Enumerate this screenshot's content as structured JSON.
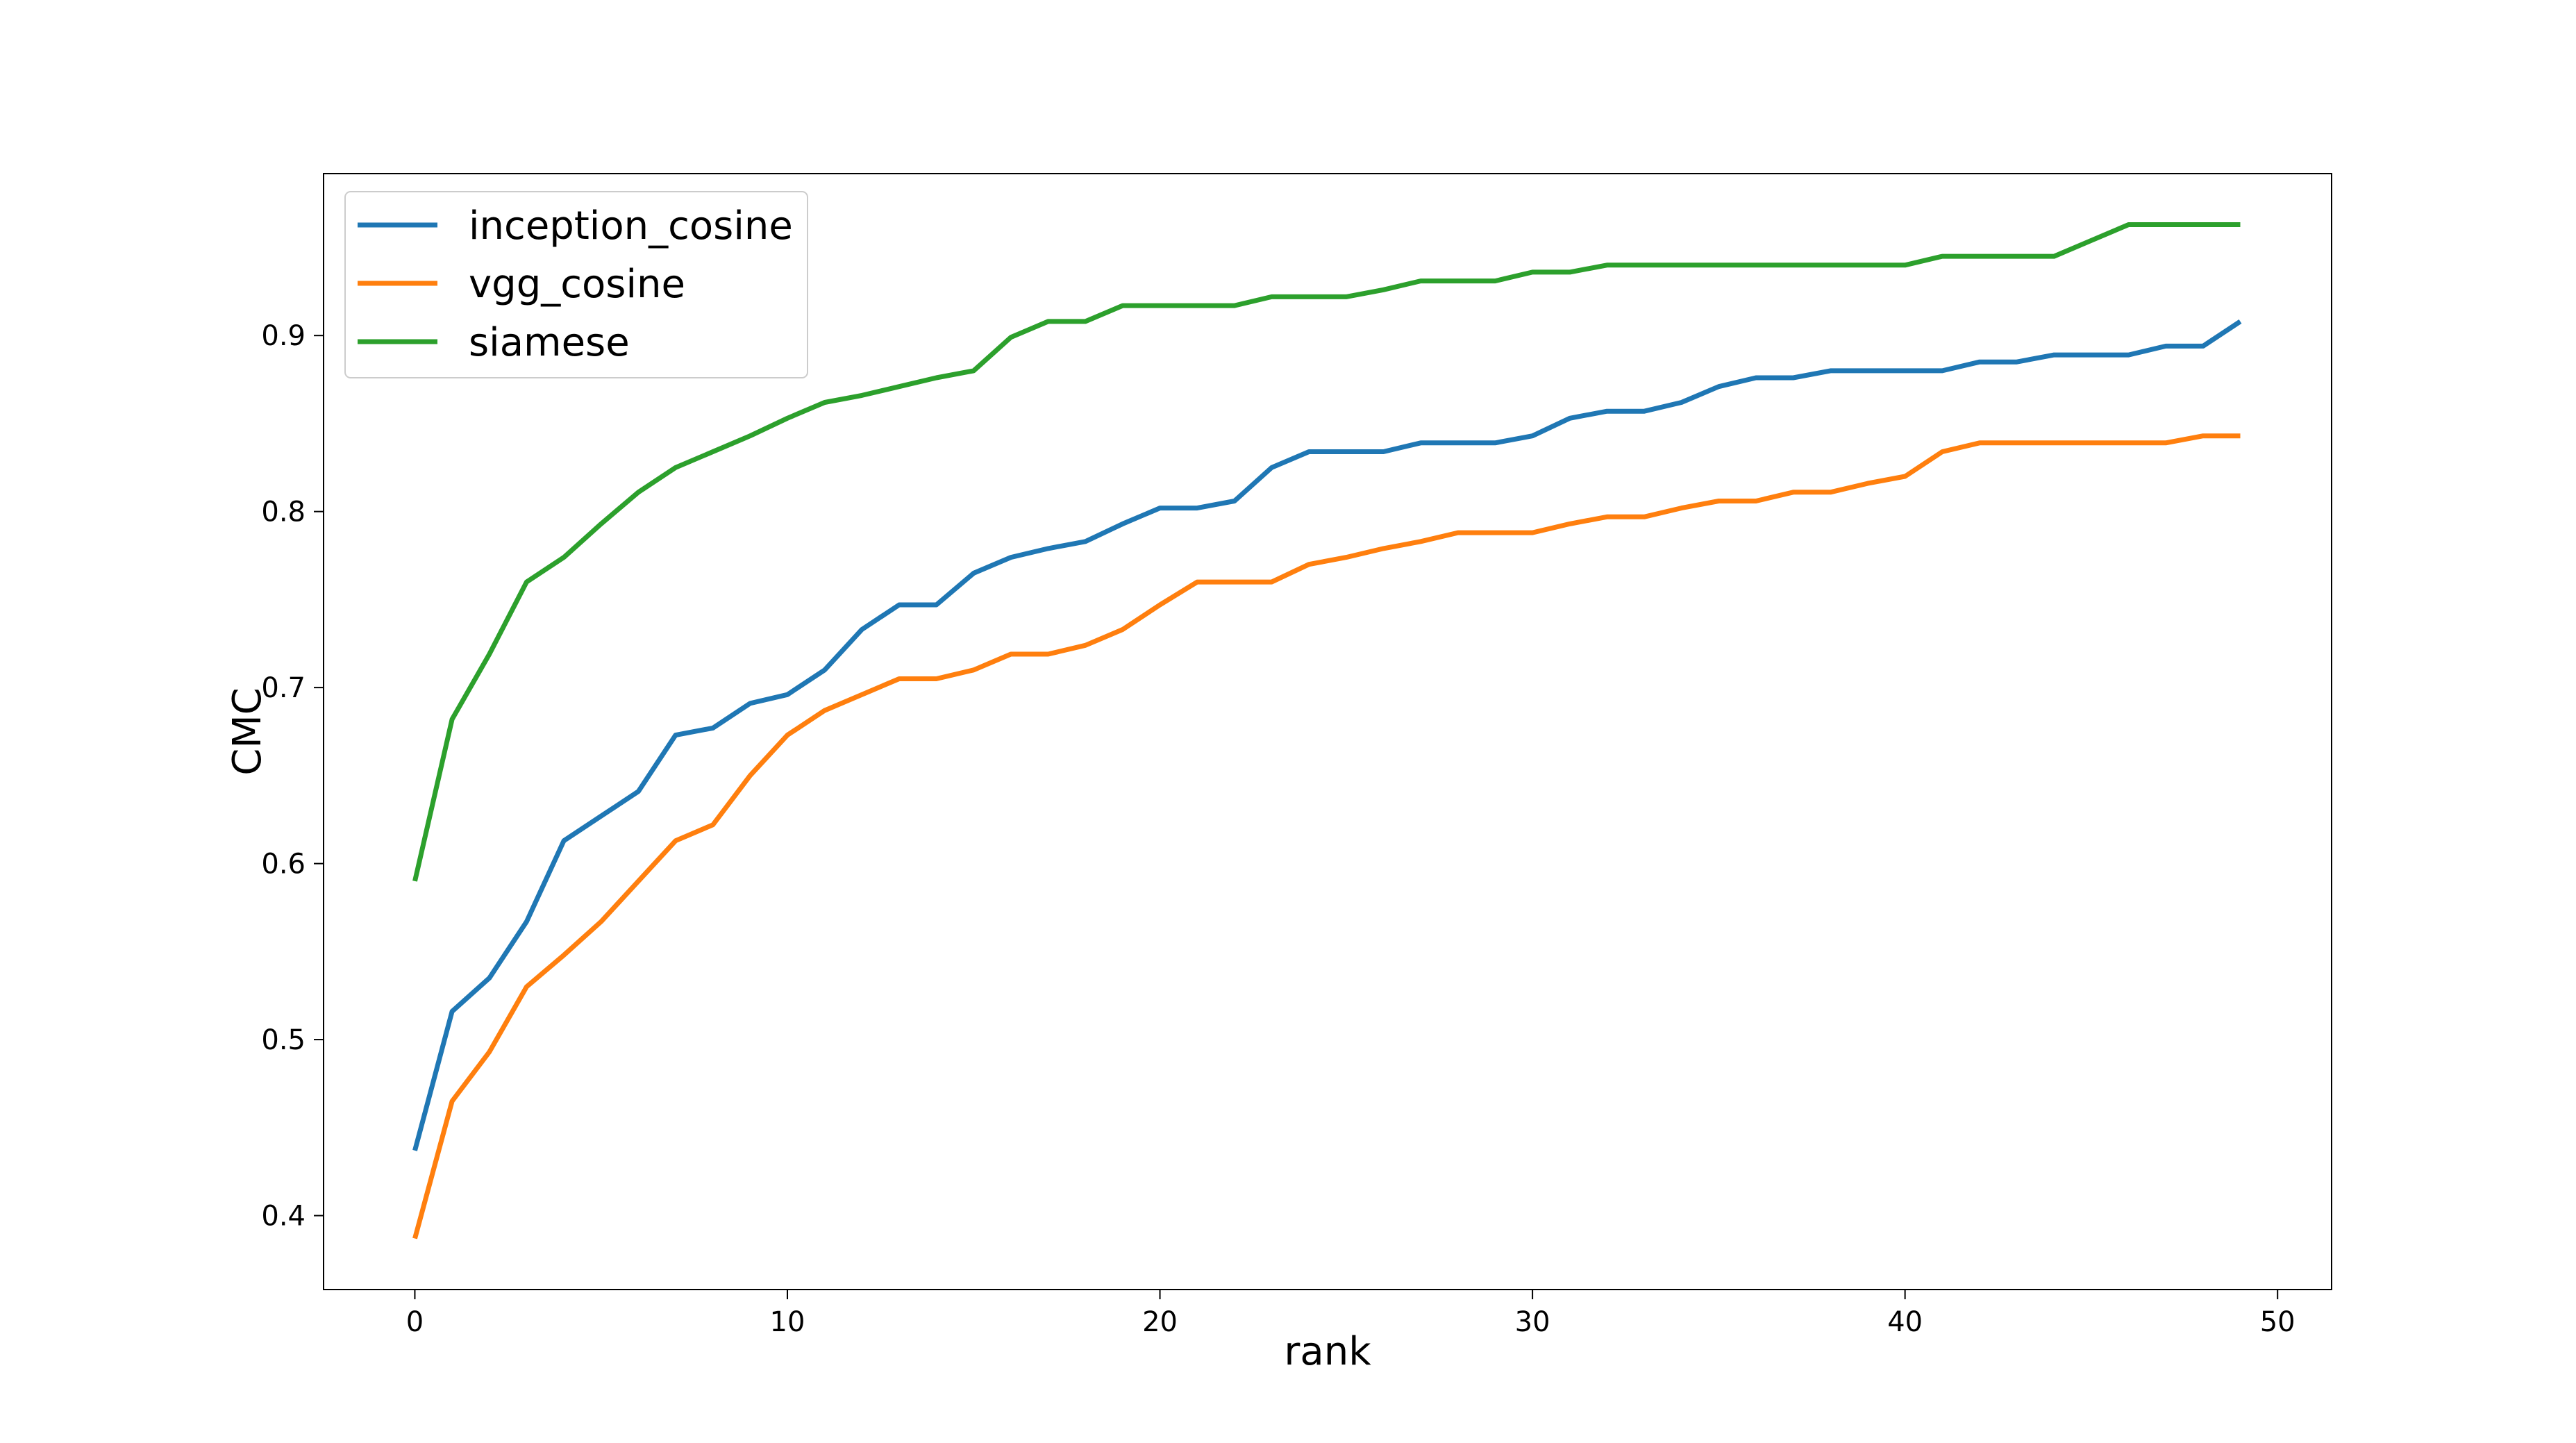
{
  "chart_data": {
    "type": "line",
    "title": "",
    "xlabel": "rank",
    "ylabel": "CMC",
    "xlim": [
      -2.45,
      51.45
    ],
    "ylim": [
      0.358,
      0.992
    ],
    "xticks": [
      0,
      10,
      20,
      30,
      40,
      50
    ],
    "yticks": [
      0.4,
      0.5,
      0.6,
      0.7,
      0.8,
      0.9
    ],
    "grid": false,
    "legend_position": "upper-left",
    "x": [
      0,
      1,
      2,
      3,
      4,
      5,
      6,
      7,
      8,
      9,
      10,
      11,
      12,
      13,
      14,
      15,
      16,
      17,
      18,
      19,
      20,
      21,
      22,
      23,
      24,
      25,
      26,
      27,
      28,
      29,
      30,
      31,
      32,
      33,
      34,
      35,
      36,
      37,
      38,
      39,
      40,
      41,
      42,
      43,
      44,
      45,
      46,
      47,
      48,
      49
    ],
    "series": [
      {
        "name": "inception_cosine",
        "color": "#1f77b4",
        "values": [
          0.437,
          0.516,
          0.535,
          0.567,
          0.613,
          0.627,
          0.641,
          0.673,
          0.677,
          0.691,
          0.696,
          0.71,
          0.733,
          0.747,
          0.747,
          0.765,
          0.774,
          0.779,
          0.783,
          0.793,
          0.802,
          0.802,
          0.806,
          0.825,
          0.834,
          0.834,
          0.834,
          0.839,
          0.839,
          0.839,
          0.843,
          0.853,
          0.857,
          0.857,
          0.862,
          0.871,
          0.876,
          0.876,
          0.88,
          0.88,
          0.88,
          0.88,
          0.885,
          0.885,
          0.889,
          0.889,
          0.889,
          0.894,
          0.894,
          0.908
        ]
      },
      {
        "name": "vgg_cosine",
        "color": "#ff7f0e",
        "values": [
          0.387,
          0.465,
          0.493,
          0.53,
          0.548,
          0.567,
          0.59,
          0.613,
          0.622,
          0.65,
          0.673,
          0.687,
          0.696,
          0.705,
          0.705,
          0.71,
          0.719,
          0.719,
          0.724,
          0.733,
          0.747,
          0.76,
          0.76,
          0.76,
          0.77,
          0.774,
          0.779,
          0.783,
          0.788,
          0.788,
          0.788,
          0.793,
          0.797,
          0.797,
          0.802,
          0.806,
          0.806,
          0.811,
          0.811,
          0.816,
          0.82,
          0.834,
          0.839,
          0.839,
          0.839,
          0.839,
          0.839,
          0.839,
          0.843,
          0.843
        ]
      },
      {
        "name": "siamese",
        "color": "#2ca02c",
        "values": [
          0.59,
          0.682,
          0.719,
          0.76,
          0.774,
          0.793,
          0.811,
          0.825,
          0.834,
          0.843,
          0.853,
          0.862,
          0.866,
          0.871,
          0.876,
          0.88,
          0.899,
          0.908,
          0.908,
          0.917,
          0.917,
          0.917,
          0.917,
          0.922,
          0.922,
          0.922,
          0.926,
          0.931,
          0.931,
          0.931,
          0.936,
          0.936,
          0.94,
          0.94,
          0.94,
          0.94,
          0.94,
          0.94,
          0.94,
          0.94,
          0.94,
          0.945,
          0.945,
          0.945,
          0.945,
          0.954,
          0.963,
          0.963,
          0.963,
          0.963
        ]
      }
    ]
  }
}
